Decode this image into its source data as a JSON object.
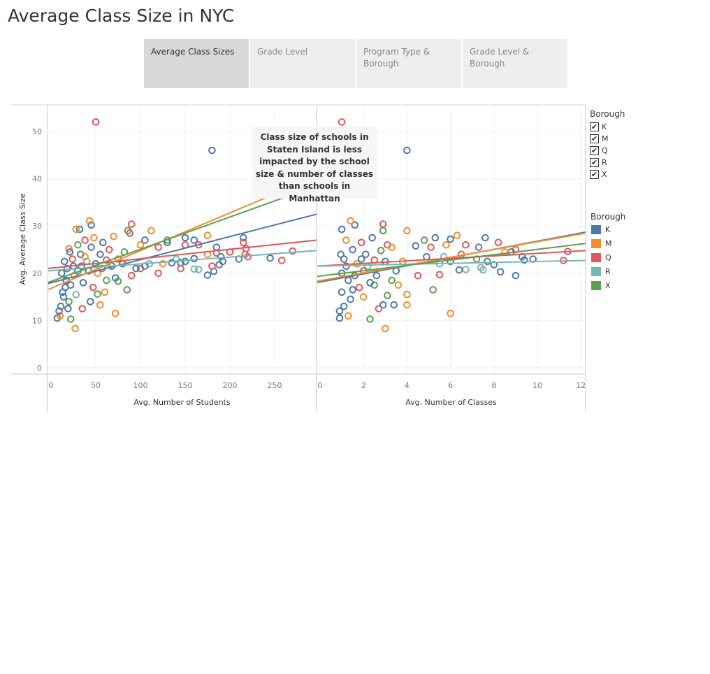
{
  "title": "Average Class Size in NYC",
  "tabs": [
    {
      "label": "Average Class Sizes",
      "active": true
    },
    {
      "label": "Grade Level",
      "active": false
    },
    {
      "label": "Program Type & Borough",
      "active": false
    },
    {
      "label": "Grade Level & Borough",
      "active": false
    }
  ],
  "filter_legend": {
    "title": "Borough",
    "items": [
      {
        "label": "K",
        "checked": true
      },
      {
        "label": "M",
        "checked": true
      },
      {
        "label": "Q",
        "checked": true
      },
      {
        "label": "R",
        "checked": true
      },
      {
        "label": "X",
        "checked": true
      }
    ],
    "check_glyph": "✔"
  },
  "color_legend": {
    "title": "Borough",
    "items": [
      {
        "label": "K",
        "color": "#4e79a7"
      },
      {
        "label": "M",
        "color": "#f28e2b"
      },
      {
        "label": "Q",
        "color": "#e15759"
      },
      {
        "label": "R",
        "color": "#76b7b2"
      },
      {
        "label": "X",
        "color": "#59a14f"
      }
    ]
  },
  "annotation": "Class size of schools in Staten Island is less impacted by the school size & number of classes than schools in Manhattan",
  "chart_data": [
    {
      "type": "scatter",
      "xlabel": "Avg. Number of Students",
      "ylabel": "Avg. Average Class Size",
      "xlim": [
        0,
        295
      ],
      "ylim": [
        0,
        55
      ],
      "xticks": [
        0,
        50,
        100,
        150,
        200,
        250
      ],
      "yticks": [
        0,
        10,
        20,
        30,
        40,
        50
      ],
      "grid": true,
      "points": [
        {
          "x": 50,
          "y": 52,
          "s": "Q"
        },
        {
          "x": 180,
          "y": 46,
          "s": "K"
        },
        {
          "x": 45,
          "y": 30.2,
          "s": "K"
        },
        {
          "x": 43,
          "y": 31.1,
          "s": "M"
        },
        {
          "x": 90,
          "y": 30.4,
          "s": "Q"
        },
        {
          "x": 112,
          "y": 29,
          "s": "M"
        },
        {
          "x": 32,
          "y": 29.3,
          "s": "K"
        },
        {
          "x": 28,
          "y": 29.3,
          "s": "M"
        },
        {
          "x": 86,
          "y": 29,
          "s": "X"
        },
        {
          "x": 88,
          "y": 28.5,
          "s": "Q"
        },
        {
          "x": 70,
          "y": 27.8,
          "s": "M"
        },
        {
          "x": 130,
          "y": 27,
          "s": "X"
        },
        {
          "x": 150,
          "y": 27.5,
          "s": "K"
        },
        {
          "x": 160,
          "y": 27,
          "s": "K"
        },
        {
          "x": 175,
          "y": 28,
          "s": "M"
        },
        {
          "x": 215,
          "y": 27.5,
          "s": "K"
        },
        {
          "x": 215,
          "y": 26.5,
          "s": "Q"
        },
        {
          "x": 150,
          "y": 26,
          "s": "Q"
        },
        {
          "x": 165,
          "y": 26,
          "s": "Q"
        },
        {
          "x": 120,
          "y": 25.5,
          "s": "Q"
        },
        {
          "x": 130,
          "y": 26.5,
          "s": "K"
        },
        {
          "x": 105,
          "y": 27,
          "s": "K"
        },
        {
          "x": 100,
          "y": 26,
          "s": "M"
        },
        {
          "x": 185,
          "y": 25.5,
          "s": "K"
        },
        {
          "x": 218,
          "y": 25.2,
          "s": "Q"
        },
        {
          "x": 217,
          "y": 24,
          "s": "Q"
        },
        {
          "x": 200,
          "y": 24.5,
          "s": "Q"
        },
        {
          "x": 185,
          "y": 24.3,
          "s": "Q"
        },
        {
          "x": 175,
          "y": 24,
          "s": "M"
        },
        {
          "x": 190,
          "y": 23.5,
          "s": "K"
        },
        {
          "x": 210,
          "y": 23,
          "s": "K"
        },
        {
          "x": 245,
          "y": 23.2,
          "s": "K"
        },
        {
          "x": 270,
          "y": 24.7,
          "s": "Q"
        },
        {
          "x": 258,
          "y": 22.7,
          "s": "Q"
        },
        {
          "x": 220,
          "y": 23.5,
          "s": "Q"
        },
        {
          "x": 160,
          "y": 23.1,
          "s": "K"
        },
        {
          "x": 150,
          "y": 22.5,
          "s": "K"
        },
        {
          "x": 140,
          "y": 23,
          "s": "R"
        },
        {
          "x": 145,
          "y": 22.2,
          "s": "K"
        },
        {
          "x": 135,
          "y": 22.2,
          "s": "K"
        },
        {
          "x": 125,
          "y": 22,
          "s": "M"
        },
        {
          "x": 110,
          "y": 22,
          "s": "R"
        },
        {
          "x": 100,
          "y": 21,
          "s": "Q"
        },
        {
          "x": 105,
          "y": 21.5,
          "s": "K"
        },
        {
          "x": 120,
          "y": 20,
          "s": "Q"
        },
        {
          "x": 145,
          "y": 21,
          "s": "Q"
        },
        {
          "x": 160,
          "y": 20.9,
          "s": "R"
        },
        {
          "x": 165,
          "y": 20.8,
          "s": "R"
        },
        {
          "x": 175,
          "y": 19.6,
          "s": "K"
        },
        {
          "x": 182,
          "y": 20.4,
          "s": "K"
        },
        {
          "x": 188,
          "y": 21.8,
          "s": "K"
        },
        {
          "x": 192,
          "y": 22.5,
          "s": "K"
        },
        {
          "x": 180,
          "y": 21.5,
          "s": "Q"
        },
        {
          "x": 90,
          "y": 19.5,
          "s": "Q"
        },
        {
          "x": 85,
          "y": 16.5,
          "s": "X"
        },
        {
          "x": 62,
          "y": 18.5,
          "s": "X"
        },
        {
          "x": 72,
          "y": 19,
          "s": "K"
        },
        {
          "x": 75,
          "y": 18.3,
          "s": "X"
        },
        {
          "x": 52,
          "y": 15.6,
          "s": "X"
        },
        {
          "x": 55,
          "y": 13.3,
          "s": "M"
        },
        {
          "x": 72,
          "y": 11.5,
          "s": "M"
        },
        {
          "x": 27,
          "y": 8.3,
          "s": "M"
        },
        {
          "x": 22,
          "y": 10.3,
          "s": "X"
        },
        {
          "x": 7,
          "y": 10.5,
          "s": "K"
        },
        {
          "x": 10,
          "y": 11,
          "s": "M"
        },
        {
          "x": 35,
          "y": 12.5,
          "s": "Q"
        },
        {
          "x": 44,
          "y": 14,
          "s": "K"
        },
        {
          "x": 60,
          "y": 16,
          "s": "M"
        },
        {
          "x": 42,
          "y": 20.5,
          "s": "K"
        },
        {
          "x": 55,
          "y": 24,
          "s": "K"
        },
        {
          "x": 65,
          "y": 25,
          "s": "Q"
        },
        {
          "x": 75,
          "y": 23,
          "s": "M"
        },
        {
          "x": 80,
          "y": 22,
          "s": "K"
        },
        {
          "x": 95,
          "y": 21,
          "s": "K"
        },
        {
          "x": 38,
          "y": 27,
          "s": "Q"
        },
        {
          "x": 48,
          "y": 27.5,
          "s": "M"
        },
        {
          "x": 58,
          "y": 26.5,
          "s": "K"
        },
        {
          "x": 30,
          "y": 26,
          "s": "X"
        },
        {
          "x": 20,
          "y": 25.2,
          "s": "M"
        },
        {
          "x": 33,
          "y": 24,
          "s": "K"
        },
        {
          "x": 24,
          "y": 23,
          "s": "Q"
        },
        {
          "x": 40,
          "y": 22.5,
          "s": "R"
        },
        {
          "x": 18,
          "y": 21,
          "s": "K"
        },
        {
          "x": 26,
          "y": 19.5,
          "s": "M"
        },
        {
          "x": 36,
          "y": 18,
          "s": "K"
        },
        {
          "x": 47,
          "y": 17,
          "s": "Q"
        },
        {
          "x": 16,
          "y": 17,
          "s": "K"
        },
        {
          "x": 14,
          "y": 15,
          "s": "K"
        },
        {
          "x": 20,
          "y": 14,
          "s": "X"
        },
        {
          "x": 11,
          "y": 13,
          "s": "K"
        },
        {
          "x": 28,
          "y": 15.5,
          "s": "R"
        },
        {
          "x": 52,
          "y": 20,
          "s": "M"
        },
        {
          "x": 68,
          "y": 21.5,
          "s": "K"
        },
        {
          "x": 82,
          "y": 24.5,
          "s": "X"
        },
        {
          "x": 62,
          "y": 22.8,
          "s": "Q"
        },
        {
          "x": 45,
          "y": 25.5,
          "s": "K"
        },
        {
          "x": 12,
          "y": 20,
          "s": "K"
        },
        {
          "x": 15,
          "y": 22.5,
          "s": "K"
        },
        {
          "x": 21,
          "y": 24.5,
          "s": "K"
        },
        {
          "x": 25,
          "y": 21.5,
          "s": "K"
        },
        {
          "x": 30,
          "y": 20.5,
          "s": "K"
        },
        {
          "x": 17,
          "y": 18.5,
          "s": "K"
        },
        {
          "x": 22,
          "y": 17.5,
          "s": "K"
        },
        {
          "x": 13,
          "y": 16,
          "s": "K"
        },
        {
          "x": 19,
          "y": 12.5,
          "s": "K"
        },
        {
          "x": 9,
          "y": 12,
          "s": "K"
        },
        {
          "x": 34,
          "y": 21.5,
          "s": "K"
        },
        {
          "x": 38,
          "y": 23.5,
          "s": "M"
        },
        {
          "x": 50,
          "y": 22,
          "s": "K"
        },
        {
          "x": 57,
          "y": 21,
          "s": "Q"
        }
      ],
      "trend_lines": [
        {
          "s": "K",
          "y_at_x0": 17.8,
          "y_at_xmax": 32.5
        },
        {
          "s": "M",
          "y_at_x0": 16.5,
          "y_at_xmax": 40.5
        },
        {
          "s": "Q",
          "y_at_x0": 21.0,
          "y_at_xmax": 27.0
        },
        {
          "s": "R",
          "y_at_x0": 20.5,
          "y_at_xmax": 24.8
        },
        {
          "s": "X",
          "y_at_x0": 18.0,
          "y_at_xmax": 38.5
        }
      ]
    },
    {
      "type": "scatter",
      "xlabel": "Avg. Number of Classes",
      "ylabel": "",
      "xlim": [
        0,
        12.2
      ],
      "ylim": [
        0,
        55
      ],
      "xticks": [
        0,
        2,
        4,
        6,
        8,
        10,
        12
      ],
      "yticks": [
        0,
        10,
        20,
        30,
        40,
        50
      ],
      "grid": true,
      "points": [
        {
          "x": 1.0,
          "y": 52,
          "s": "Q"
        },
        {
          "x": 4,
          "y": 46,
          "s": "K"
        },
        {
          "x": 1.6,
          "y": 30.2,
          "s": "K"
        },
        {
          "x": 1.4,
          "y": 31.1,
          "s": "M"
        },
        {
          "x": 2.9,
          "y": 30.4,
          "s": "Q"
        },
        {
          "x": 4,
          "y": 29,
          "s": "M"
        },
        {
          "x": 1.0,
          "y": 29.3,
          "s": "K"
        },
        {
          "x": 2.9,
          "y": 29,
          "s": "X"
        },
        {
          "x": 6.3,
          "y": 28,
          "s": "M"
        },
        {
          "x": 7.6,
          "y": 27.5,
          "s": "K"
        },
        {
          "x": 5.3,
          "y": 27.5,
          "s": "K"
        },
        {
          "x": 6.0,
          "y": 27.2,
          "s": "K"
        },
        {
          "x": 4.8,
          "y": 27,
          "s": "X"
        },
        {
          "x": 8.2,
          "y": 26.5,
          "s": "Q"
        },
        {
          "x": 6.7,
          "y": 26,
          "s": "Q"
        },
        {
          "x": 5.8,
          "y": 26,
          "s": "M"
        },
        {
          "x": 7.3,
          "y": 25.5,
          "s": "K"
        },
        {
          "x": 5.1,
          "y": 25.5,
          "s": "Q"
        },
        {
          "x": 4.4,
          "y": 25.8,
          "s": "K"
        },
        {
          "x": 11.4,
          "y": 24.6,
          "s": "Q"
        },
        {
          "x": 9.0,
          "y": 25,
          "s": "Q"
        },
        {
          "x": 8.8,
          "y": 24.5,
          "s": "K"
        },
        {
          "x": 8.5,
          "y": 24.5,
          "s": "M"
        },
        {
          "x": 9.3,
          "y": 23.5,
          "s": "K"
        },
        {
          "x": 9.8,
          "y": 23,
          "s": "K"
        },
        {
          "x": 9.4,
          "y": 22.8,
          "s": "K"
        },
        {
          "x": 11.2,
          "y": 22.7,
          "s": "Q"
        },
        {
          "x": 7.7,
          "y": 22.5,
          "s": "K"
        },
        {
          "x": 7.2,
          "y": 23,
          "s": "Q"
        },
        {
          "x": 6.5,
          "y": 24,
          "s": "Q"
        },
        {
          "x": 6.0,
          "y": 22.5,
          "s": "K"
        },
        {
          "x": 5.7,
          "y": 23.5,
          "s": "R"
        },
        {
          "x": 5.5,
          "y": 22,
          "s": "R"
        },
        {
          "x": 4.9,
          "y": 23.5,
          "s": "K"
        },
        {
          "x": 8.0,
          "y": 21.8,
          "s": "K"
        },
        {
          "x": 8.3,
          "y": 20.3,
          "s": "K"
        },
        {
          "x": 7.5,
          "y": 20.7,
          "s": "R"
        },
        {
          "x": 7.4,
          "y": 21.2,
          "s": "R"
        },
        {
          "x": 6.7,
          "y": 20.8,
          "s": "R"
        },
        {
          "x": 6.4,
          "y": 20.7,
          "s": "K"
        },
        {
          "x": 9.0,
          "y": 19.5,
          "s": "K"
        },
        {
          "x": 5.5,
          "y": 19.7,
          "s": "Q"
        },
        {
          "x": 4.5,
          "y": 19.5,
          "s": "Q"
        },
        {
          "x": 3.5,
          "y": 20.5,
          "s": "K"
        },
        {
          "x": 5.2,
          "y": 16.5,
          "s": "X"
        },
        {
          "x": 4.0,
          "y": 15.5,
          "s": "M"
        },
        {
          "x": 4.0,
          "y": 13.3,
          "s": "M"
        },
        {
          "x": 6.0,
          "y": 11.5,
          "s": "M"
        },
        {
          "x": 3.0,
          "y": 8.3,
          "s": "M"
        },
        {
          "x": 2.3,
          "y": 10.3,
          "s": "X"
        },
        {
          "x": 0.9,
          "y": 10.5,
          "s": "K"
        },
        {
          "x": 1.3,
          "y": 11,
          "s": "M"
        },
        {
          "x": 2.7,
          "y": 12.5,
          "s": "Q"
        },
        {
          "x": 3.4,
          "y": 13.3,
          "s": "K"
        },
        {
          "x": 2.9,
          "y": 13.3,
          "s": "K"
        },
        {
          "x": 3.1,
          "y": 15.3,
          "s": "X"
        },
        {
          "x": 3.3,
          "y": 18.5,
          "s": "X"
        },
        {
          "x": 2.5,
          "y": 17.5,
          "s": "X"
        },
        {
          "x": 3.6,
          "y": 17.5,
          "s": "M"
        },
        {
          "x": 3.8,
          "y": 22.5,
          "s": "M"
        },
        {
          "x": 2.1,
          "y": 24,
          "s": "K"
        },
        {
          "x": 1.9,
          "y": 26.5,
          "s": "Q"
        },
        {
          "x": 1.2,
          "y": 27,
          "s": "M"
        },
        {
          "x": 2.4,
          "y": 27.5,
          "s": "K"
        },
        {
          "x": 3.1,
          "y": 26,
          "s": "Q"
        },
        {
          "x": 1.5,
          "y": 25,
          "s": "K"
        },
        {
          "x": 1.1,
          "y": 23,
          "s": "K"
        },
        {
          "x": 1.7,
          "y": 22,
          "s": "M"
        },
        {
          "x": 2.2,
          "y": 21.5,
          "s": "R"
        },
        {
          "x": 1.0,
          "y": 20,
          "s": "K"
        },
        {
          "x": 1.3,
          "y": 18.5,
          "s": "K"
        },
        {
          "x": 1.8,
          "y": 17,
          "s": "Q"
        },
        {
          "x": 1.0,
          "y": 16,
          "s": "K"
        },
        {
          "x": 1.4,
          "y": 14.5,
          "s": "K"
        },
        {
          "x": 2.0,
          "y": 15,
          "s": "M"
        },
        {
          "x": 1.1,
          "y": 13,
          "s": "K"
        },
        {
          "x": 0.9,
          "y": 12,
          "s": "K"
        },
        {
          "x": 2.6,
          "y": 19.5,
          "s": "K"
        },
        {
          "x": 3.0,
          "y": 22.5,
          "s": "K"
        },
        {
          "x": 2.8,
          "y": 24.8,
          "s": "X"
        },
        {
          "x": 1.6,
          "y": 19.5,
          "s": "K"
        },
        {
          "x": 1.2,
          "y": 21.5,
          "s": "K"
        },
        {
          "x": 0.95,
          "y": 24,
          "s": "K"
        },
        {
          "x": 1.9,
          "y": 23,
          "s": "K"
        },
        {
          "x": 2.3,
          "y": 18,
          "s": "K"
        },
        {
          "x": 1.5,
          "y": 16.5,
          "s": "K"
        },
        {
          "x": 2.0,
          "y": 20.5,
          "s": "Q"
        },
        {
          "x": 3.3,
          "y": 25.5,
          "s": "M"
        },
        {
          "x": 2.5,
          "y": 22.8,
          "s": "Q"
        }
      ],
      "trend_lines": [
        {
          "s": "K",
          "y_at_x0": 18.0,
          "y_at_xmax": 28.7
        },
        {
          "s": "M",
          "y_at_x0": 18.3,
          "y_at_xmax": 28.5
        },
        {
          "s": "Q",
          "y_at_x0": 21.5,
          "y_at_xmax": 24.8
        },
        {
          "s": "R",
          "y_at_x0": 21.5,
          "y_at_xmax": 22.7
        },
        {
          "s": "X",
          "y_at_x0": 19.3,
          "y_at_xmax": 26.3
        }
      ]
    }
  ]
}
